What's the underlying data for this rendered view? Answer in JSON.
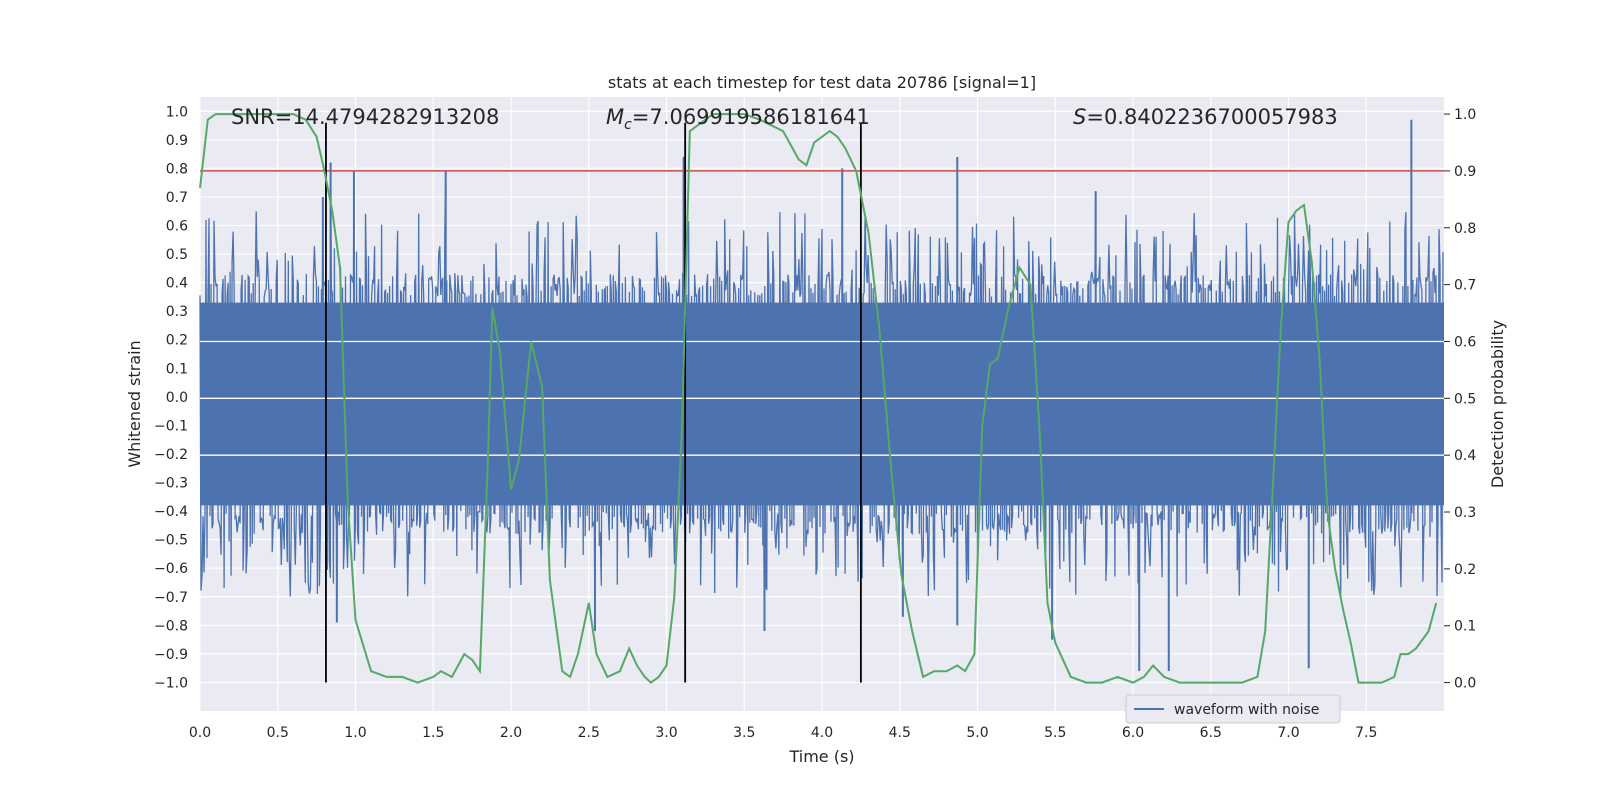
{
  "chart_data": {
    "type": "line",
    "title": "stats at each timestep for test data 20786 [signal=1]",
    "xlabel": "Time (s)",
    "ylabel_left": "Whitened strain",
    "ylabel_right": "Detection probability",
    "xlim": [
      0.0,
      8.0
    ],
    "ylim_left": [
      -1.1,
      1.05
    ],
    "ylim_right": [
      -0.05,
      1.03
    ],
    "xticks": [
      "0.0",
      "0.5",
      "1.0",
      "1.5",
      "2.0",
      "2.5",
      "3.0",
      "3.5",
      "4.0",
      "4.5",
      "5.0",
      "5.5",
      "6.0",
      "6.5",
      "7.0",
      "7.5"
    ],
    "yticks_left": [
      "1.0",
      "0.9",
      "0.8",
      "0.7",
      "0.6",
      "0.5",
      "0.4",
      "0.3",
      "0.2",
      "0.1",
      "0.0",
      "-0.1",
      "-0.2",
      "-0.3",
      "-0.4",
      "-0.5",
      "-0.6",
      "-0.7",
      "-0.8",
      "-0.9",
      "-1.0"
    ],
    "yticks_right": [
      "1.0",
      "0.9",
      "0.8",
      "0.7",
      "0.6",
      "0.5",
      "0.4",
      "0.3",
      "0.2",
      "0.1",
      "0.0"
    ],
    "grid": true,
    "legend_position": "bottom-right",
    "annotations": {
      "snr": "SNR=14.4794282913208",
      "mc_symbol": "M",
      "mc_sub": "c",
      "mc_value": "=7.069919586181641",
      "s_symbol": "S",
      "s_value": "=0.8402236700057983"
    },
    "threshold": 0.9,
    "vertical_lines": [
      0.81,
      3.12,
      4.25
    ],
    "series": [
      {
        "name": "waveform with noise",
        "axis": "left",
        "color": "#4c72b0",
        "envelope": {
          "upper": 0.35,
          "lower": -0.4,
          "max_spike": 0.97,
          "min_spike": -0.97,
          "duration": 8.0
        },
        "peaks": [
          {
            "x": 0.79,
            "y": 0.7
          },
          {
            "x": 0.84,
            "y": 0.82
          },
          {
            "x": 0.99,
            "y": 0.79
          },
          {
            "x": 1.58,
            "y": 0.79
          },
          {
            "x": 3.11,
            "y": 0.84
          },
          {
            "x": 4.13,
            "y": 0.8
          },
          {
            "x": 4.87,
            "y": 0.84
          },
          {
            "x": 5.76,
            "y": 0.72
          },
          {
            "x": 7.79,
            "y": 0.97
          },
          {
            "x": 0.88,
            "y": -0.79
          },
          {
            "x": 2.54,
            "y": -0.82
          },
          {
            "x": 3.63,
            "y": -0.82
          },
          {
            "x": 5.48,
            "y": -0.85
          },
          {
            "x": 6.04,
            "y": -0.96
          },
          {
            "x": 6.23,
            "y": -0.96
          },
          {
            "x": 7.13,
            "y": -0.95
          },
          {
            "x": 4.52,
            "y": -0.77
          },
          {
            "x": 4.87,
            "y": -0.8
          }
        ]
      },
      {
        "name": "detection probability",
        "axis": "right",
        "color": "#55a868",
        "x": [
          0.0,
          0.05,
          0.1,
          0.2,
          0.4,
          0.6,
          0.68,
          0.75,
          0.8,
          0.85,
          0.9,
          0.95,
          1.0,
          1.1,
          1.2,
          1.3,
          1.4,
          1.5,
          1.55,
          1.62,
          1.7,
          1.75,
          1.8,
          1.85,
          1.88,
          1.93,
          2.0,
          2.05,
          2.13,
          2.2,
          2.25,
          2.33,
          2.38,
          2.43,
          2.5,
          2.55,
          2.62,
          2.7,
          2.76,
          2.81,
          2.86,
          2.9,
          2.95,
          3.0,
          3.05,
          3.1,
          3.15,
          3.2,
          3.25,
          3.3,
          3.4,
          3.5,
          3.6,
          3.75,
          3.85,
          3.9,
          3.95,
          4.05,
          4.1,
          4.15,
          4.22,
          4.3,
          4.37,
          4.44,
          4.51,
          4.58,
          4.65,
          4.72,
          4.8,
          4.87,
          4.92,
          4.98,
          5.03,
          5.08,
          5.13,
          5.2,
          5.27,
          5.34,
          5.4,
          5.45,
          5.5,
          5.6,
          5.7,
          5.8,
          5.9,
          6.0,
          6.07,
          6.13,
          6.2,
          6.3,
          6.4,
          6.5,
          6.6,
          6.7,
          6.8,
          6.85,
          6.9,
          6.95,
          7.0,
          7.05,
          7.1,
          7.15,
          7.2,
          7.25,
          7.3,
          7.35,
          7.4,
          7.45,
          7.52,
          7.6,
          7.68,
          7.72,
          7.77,
          7.82,
          7.9,
          7.95
        ],
        "y": [
          0.87,
          0.99,
          1.0,
          1.0,
          1.0,
          1.0,
          0.99,
          0.96,
          0.9,
          0.83,
          0.73,
          0.32,
          0.11,
          0.02,
          0.01,
          0.01,
          0.0,
          0.01,
          0.02,
          0.01,
          0.05,
          0.04,
          0.02,
          0.38,
          0.66,
          0.58,
          0.34,
          0.39,
          0.6,
          0.52,
          0.18,
          0.02,
          0.01,
          0.05,
          0.14,
          0.05,
          0.01,
          0.02,
          0.06,
          0.03,
          0.01,
          0.0,
          0.01,
          0.03,
          0.15,
          0.45,
          0.97,
          0.98,
          0.99,
          1.0,
          1.0,
          1.0,
          0.99,
          0.97,
          0.92,
          0.91,
          0.95,
          0.97,
          0.96,
          0.94,
          0.9,
          0.79,
          0.62,
          0.39,
          0.19,
          0.09,
          0.01,
          0.02,
          0.02,
          0.03,
          0.02,
          0.05,
          0.45,
          0.56,
          0.57,
          0.66,
          0.73,
          0.7,
          0.44,
          0.14,
          0.07,
          0.01,
          0.0,
          0.0,
          0.01,
          0.0,
          0.01,
          0.03,
          0.01,
          0.0,
          0.0,
          0.0,
          0.0,
          0.0,
          0.01,
          0.09,
          0.35,
          0.62,
          0.81,
          0.83,
          0.84,
          0.74,
          0.57,
          0.3,
          0.2,
          0.13,
          0.07,
          0.0,
          0.0,
          0.0,
          0.01,
          0.05,
          0.05,
          0.06,
          0.09,
          0.14
        ]
      }
    ]
  }
}
